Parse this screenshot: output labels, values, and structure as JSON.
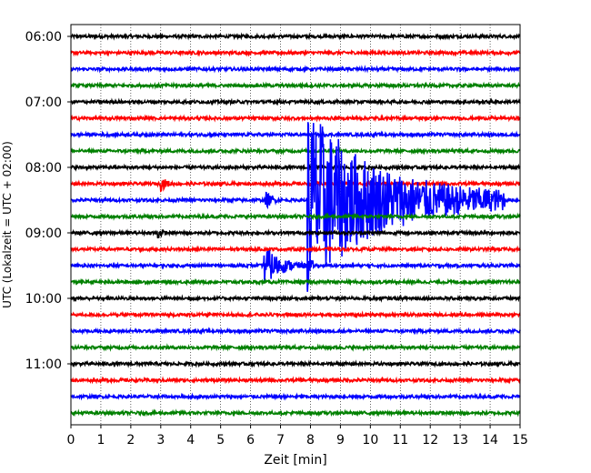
{
  "chart_data": {
    "type": "line",
    "xlabel": "Zeit  [min]",
    "ylabel": "UTC (Lokalzeit = UTC + 02:00)",
    "xlim": [
      0,
      15
    ],
    "x_ticks": [
      "0",
      "1",
      "2",
      "3",
      "4",
      "5",
      "6",
      "7",
      "8",
      "9",
      "10",
      "11",
      "12",
      "13",
      "14",
      "15"
    ],
    "y_ticks": [
      "06:00",
      "07:00",
      "08:00",
      "09:00",
      "10:00",
      "11:00"
    ],
    "vertical_grid": true,
    "trace_interval_min": 15,
    "trace_start": "06:00",
    "trace_end": "11:45",
    "trace_colors": [
      "#000000",
      "#ff0000",
      "#0000ff",
      "#008000"
    ],
    "events": [
      {
        "trace": "08:15",
        "t_start": 3.0,
        "t_end": 3.8,
        "amplitude": 0.55
      },
      {
        "trace": "08:30",
        "t_start": 6.5,
        "t_end": 7.2,
        "amplitude": 0.7
      },
      {
        "trace": "08:30",
        "t_start": 7.9,
        "t_end": 14.5,
        "amplitude": 7.0
      },
      {
        "trace": "08:30",
        "t_start": 11.6,
        "t_end": 12.2,
        "amplitude": 0.7
      },
      {
        "trace": "09:00",
        "t_start": 2.9,
        "t_end": 3.3,
        "amplitude": 0.6
      },
      {
        "trace": "09:30",
        "t_start": 6.45,
        "t_end": 8.0,
        "amplitude": 1.6
      },
      {
        "trace": "09:30",
        "t_start": 7.9,
        "t_end": 8.1,
        "amplitude": 2.2
      }
    ]
  }
}
